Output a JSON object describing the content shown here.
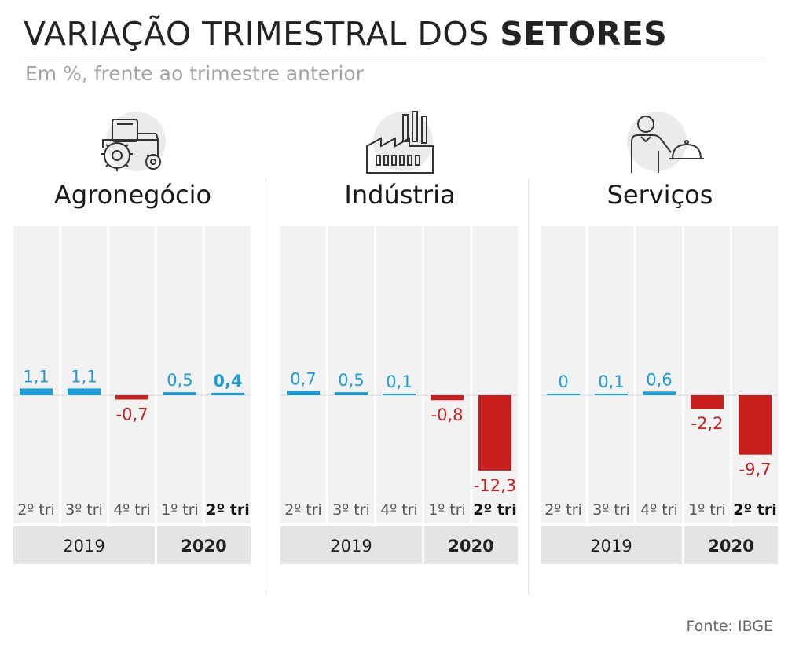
{
  "title": {
    "light": "VARIAÇÃO TRIMESTRAL DOS ",
    "bold": "SETORES"
  },
  "subtitle": "Em %, frente ao trimestre anterior",
  "source": "Fonte: IBGE",
  "colors": {
    "positive": "#1e9cd6",
    "negative": "#c81e1e",
    "column_bg": "#f2f2f2",
    "year_bg": "#e4e4e4"
  },
  "chart_data": [
    {
      "type": "bar",
      "title": "Agronegócio",
      "icon": "tractor-icon",
      "categories": [
        "2º tri",
        "3º tri",
        "4º tri",
        "1º tri",
        "2º tri"
      ],
      "years": [
        {
          "label": "2019",
          "span": 3
        },
        {
          "label": "2020",
          "span": 2
        }
      ],
      "values": [
        1.1,
        1.1,
        -0.7,
        0.5,
        0.4
      ],
      "labels": [
        "1,1",
        "1,1",
        "-0,7",
        "0,5",
        "0,4"
      ],
      "highlight_index": 4
    },
    {
      "type": "bar",
      "title": "Indústria",
      "icon": "factory-icon",
      "categories": [
        "2º tri",
        "3º tri",
        "4º tri",
        "1º tri",
        "2º tri"
      ],
      "years": [
        {
          "label": "2019",
          "span": 3
        },
        {
          "label": "2020",
          "span": 2
        }
      ],
      "values": [
        0.7,
        0.5,
        0.1,
        -0.8,
        -12.3
      ],
      "labels": [
        "0,7",
        "0,5",
        "0,1",
        "-0,8",
        "-12,3"
      ],
      "highlight_index": 4
    },
    {
      "type": "bar",
      "title": "Serviços",
      "icon": "waiter-icon",
      "categories": [
        "2º tri",
        "3º tri",
        "4º tri",
        "1º tri",
        "2º tri"
      ],
      "years": [
        {
          "label": "2019",
          "span": 3
        },
        {
          "label": "2020",
          "span": 2
        }
      ],
      "values": [
        0,
        0.1,
        0.6,
        -2.2,
        -9.7
      ],
      "labels": [
        "0",
        "0,1",
        "0,6",
        "-2,2",
        "-9,7"
      ],
      "highlight_index": 4
    }
  ]
}
